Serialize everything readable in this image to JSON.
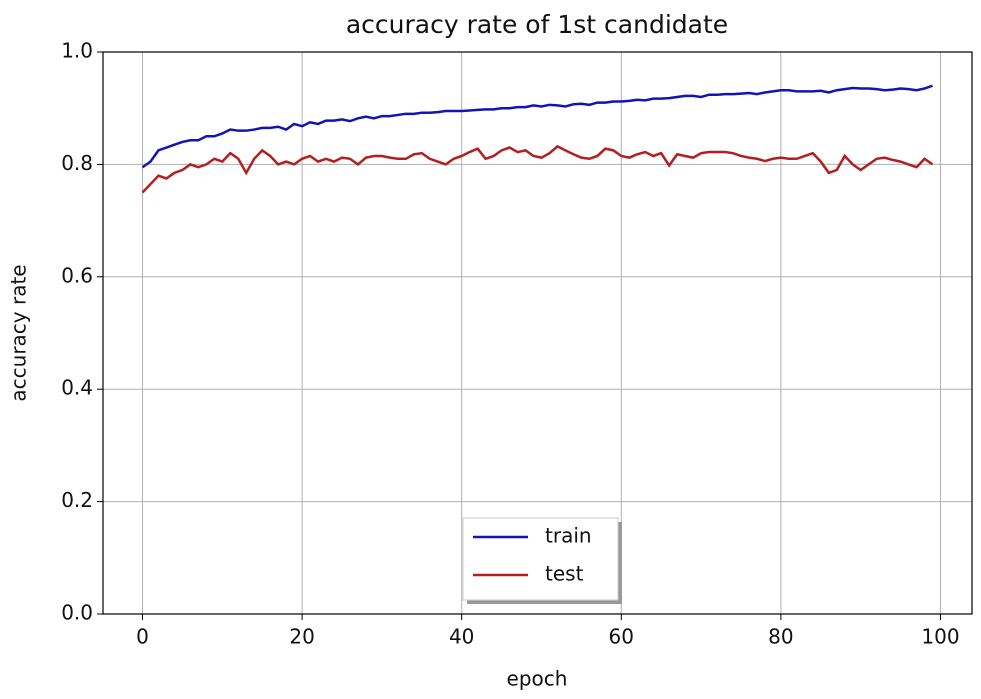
{
  "chart_data": {
    "type": "line",
    "title": "accuracy rate of 1st candidate",
    "x_label": "epoch",
    "y_label": "accuracy rate",
    "x": [
      0,
      1,
      2,
      3,
      4,
      5,
      6,
      7,
      8,
      9,
      10,
      11,
      12,
      13,
      14,
      15,
      16,
      17,
      18,
      19,
      20,
      21,
      22,
      23,
      24,
      25,
      26,
      27,
      28,
      29,
      30,
      31,
      32,
      33,
      34,
      35,
      36,
      37,
      38,
      39,
      40,
      41,
      42,
      43,
      44,
      45,
      46,
      47,
      48,
      49,
      50,
      51,
      52,
      53,
      54,
      55,
      56,
      57,
      58,
      59,
      60,
      61,
      62,
      63,
      64,
      65,
      66,
      67,
      68,
      69,
      70,
      71,
      72,
      73,
      74,
      75,
      76,
      77,
      78,
      79,
      80,
      81,
      82,
      83,
      84,
      85,
      86,
      87,
      88,
      89,
      90,
      91,
      92,
      93,
      94,
      95,
      96,
      97,
      98,
      99
    ],
    "series": [
      {
        "name": "train",
        "color": "#1414b4",
        "values": [
          0.795,
          0.805,
          0.825,
          0.83,
          0.835,
          0.84,
          0.843,
          0.843,
          0.85,
          0.85,
          0.855,
          0.862,
          0.86,
          0.86,
          0.862,
          0.865,
          0.865,
          0.867,
          0.862,
          0.872,
          0.868,
          0.875,
          0.872,
          0.878,
          0.878,
          0.88,
          0.877,
          0.882,
          0.885,
          0.882,
          0.886,
          0.886,
          0.888,
          0.89,
          0.89,
          0.892,
          0.892,
          0.893,
          0.895,
          0.895,
          0.895,
          0.896,
          0.897,
          0.898,
          0.898,
          0.9,
          0.9,
          0.902,
          0.902,
          0.905,
          0.903,
          0.906,
          0.905,
          0.903,
          0.907,
          0.908,
          0.906,
          0.91,
          0.91,
          0.912,
          0.912,
          0.913,
          0.915,
          0.914,
          0.917,
          0.917,
          0.918,
          0.92,
          0.922,
          0.922,
          0.92,
          0.924,
          0.924,
          0.925,
          0.925,
          0.926,
          0.927,
          0.925,
          0.928,
          0.93,
          0.932,
          0.932,
          0.93,
          0.93,
          0.93,
          0.931,
          0.928,
          0.932,
          0.934,
          0.936,
          0.935,
          0.935,
          0.934,
          0.932,
          0.933,
          0.935,
          0.934,
          0.932,
          0.935,
          0.94
        ]
      },
      {
        "name": "test",
        "color": "#b41e1e",
        "values": [
          0.75,
          0.765,
          0.78,
          0.775,
          0.785,
          0.79,
          0.8,
          0.795,
          0.8,
          0.81,
          0.805,
          0.82,
          0.81,
          0.785,
          0.81,
          0.825,
          0.815,
          0.8,
          0.805,
          0.8,
          0.81,
          0.815,
          0.805,
          0.81,
          0.805,
          0.812,
          0.81,
          0.8,
          0.812,
          0.815,
          0.815,
          0.812,
          0.81,
          0.81,
          0.818,
          0.82,
          0.81,
          0.805,
          0.8,
          0.81,
          0.815,
          0.822,
          0.828,
          0.81,
          0.815,
          0.825,
          0.83,
          0.822,
          0.825,
          0.815,
          0.812,
          0.82,
          0.832,
          0.825,
          0.818,
          0.812,
          0.81,
          0.815,
          0.828,
          0.825,
          0.815,
          0.812,
          0.818,
          0.822,
          0.815,
          0.82,
          0.798,
          0.818,
          0.815,
          0.812,
          0.82,
          0.822,
          0.822,
          0.822,
          0.82,
          0.815,
          0.812,
          0.81,
          0.806,
          0.81,
          0.812,
          0.81,
          0.81,
          0.815,
          0.82,
          0.805,
          0.785,
          0.79,
          0.815,
          0.8,
          0.79,
          0.8,
          0.81,
          0.812,
          0.808,
          0.805,
          0.8,
          0.795,
          0.81,
          0.8
        ]
      }
    ],
    "xlim": [
      -4.95,
      103.95
    ],
    "ylim": [
      0,
      1
    ],
    "xticks": [
      0,
      20,
      40,
      60,
      80,
      100
    ],
    "yticks": [
      {
        "value": 0,
        "label": "0.0"
      },
      0.2,
      0.4,
      0.6,
      0.8,
      {
        "value": 1,
        "label": "1.0"
      }
    ],
    "grid": true,
    "legend": "lower center"
  }
}
